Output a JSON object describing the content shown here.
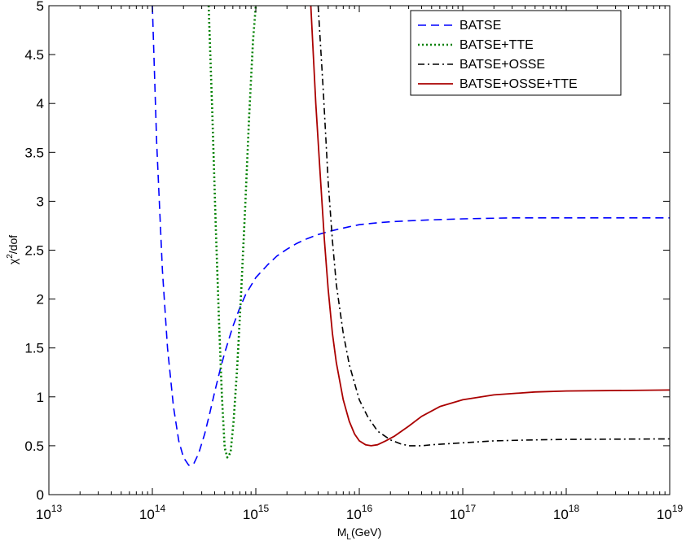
{
  "chart_data": {
    "type": "line",
    "xlabel_main": "M",
    "xlabel_sub": "L",
    "xlabel_unit": "(GeV)",
    "ylabel_main": "χ",
    "ylabel_sup": "2",
    "ylabel_rest": "/dof",
    "x_scale": "log",
    "xlim": [
      10000000000000.0,
      1e+19
    ],
    "ylim": [
      0,
      5
    ],
    "grid": false,
    "legend_position": "top-right",
    "x_ticks": [
      {
        "exp": 13,
        "base": "10",
        "power": "13"
      },
      {
        "exp": 14,
        "base": "10",
        "power": "14"
      },
      {
        "exp": 15,
        "base": "10",
        "power": "15"
      },
      {
        "exp": 16,
        "base": "10",
        "power": "16"
      },
      {
        "exp": 17,
        "base": "10",
        "power": "17"
      },
      {
        "exp": 18,
        "base": "10",
        "power": "18"
      },
      {
        "exp": 19,
        "base": "10",
        "power": "19"
      }
    ],
    "y_ticks": [
      {
        "value": 0,
        "label": "0"
      },
      {
        "value": 0.5,
        "label": "0.5"
      },
      {
        "value": 1,
        "label": "1"
      },
      {
        "value": 1.5,
        "label": "1.5"
      },
      {
        "value": 2,
        "label": "2"
      },
      {
        "value": 2.5,
        "label": "2.5"
      },
      {
        "value": 3,
        "label": "3"
      },
      {
        "value": 3.5,
        "label": "3.5"
      },
      {
        "value": 4,
        "label": "4"
      },
      {
        "value": 4.5,
        "label": "4.5"
      },
      {
        "value": 5,
        "label": "5"
      }
    ],
    "series": [
      {
        "name": "BATSE",
        "color": "#0000ff",
        "style": "dashed",
        "x": [
          100000000000000.0,
          110000000000000.0,
          125000000000000.0,
          140000000000000.0,
          160000000000000.0,
          180000000000000.0,
          200000000000000.0,
          225000000000000.0,
          250000000000000.0,
          280000000000000.0,
          320000000000000.0,
          360000000000000.0,
          400000000000000.0,
          450000000000000.0,
          500000000000000.0,
          600000000000000.0,
          700000000000000.0,
          800000000000000.0,
          1000000000000000.0,
          1300000000000000.0,
          1600000000000000.0,
          2000000000000000.0,
          2500000000000000.0,
          3000000000000000.0,
          4000000000000000.0,
          5000000000000000.0,
          6000000000000000.0,
          8000000000000000.0,
          1e+16,
          1.5e+16,
          2e+16,
          3e+16,
          5e+16,
          1e+17,
          3e+17,
          1e+18,
          1e+19
        ],
        "y": [
          5,
          3.6,
          2.3,
          1.5,
          0.9,
          0.55,
          0.38,
          0.3,
          0.31,
          0.42,
          0.62,
          0.84,
          1.05,
          1.27,
          1.45,
          1.72,
          1.91,
          2.05,
          2.22,
          2.35,
          2.44,
          2.51,
          2.57,
          2.61,
          2.66,
          2.69,
          2.71,
          2.74,
          2.76,
          2.78,
          2.79,
          2.8,
          2.81,
          2.82,
          2.83,
          2.83,
          2.83
        ]
      },
      {
        "name": "BATSE+TTE",
        "color": "#008000",
        "style": "dotted",
        "x": [
          350000000000000.0,
          380000000000000.0,
          410000000000000.0,
          440000000000000.0,
          470000000000000.0,
          500000000000000.0,
          530000000000000.0,
          570000000000000.0,
          610000000000000.0,
          660000000000000.0,
          720000000000000.0,
          790000000000000.0,
          860000000000000.0,
          940000000000000.0,
          1000000000000000.0
        ],
        "y": [
          5,
          3.9,
          2.75,
          1.8,
          1.0,
          0.48,
          0.38,
          0.43,
          0.75,
          1.3,
          2.05,
          2.95,
          3.85,
          4.65,
          5
        ]
      },
      {
        "name": "BATSE+OSSE",
        "color": "#000000",
        "style": "dashdot",
        "x": [
          4000000000000000.0,
          4500000000000000.0,
          5000000000000000.0,
          5500000000000000.0,
          6000000000000000.0,
          7000000000000000.0,
          8000000000000000.0,
          1e+16,
          1.2e+16,
          1.5e+16,
          2e+16,
          2.5e+16,
          3e+16,
          4e+16,
          5e+16,
          7e+16,
          1e+17,
          2e+17,
          5e+17,
          1e+18,
          1e+19
        ],
        "y": [
          5,
          4.1,
          3.2,
          2.6,
          2.15,
          1.65,
          1.33,
          0.97,
          0.8,
          0.65,
          0.56,
          0.52,
          0.5,
          0.5,
          0.51,
          0.52,
          0.53,
          0.55,
          0.56,
          0.565,
          0.57
        ]
      },
      {
        "name": "BATSE+OSSE+TTE",
        "color": "#aa0000",
        "style": "solid",
        "x": [
          3400000000000000.0,
          3800000000000000.0,
          4200000000000000.0,
          4600000000000000.0,
          5000000000000000.0,
          5500000000000000.0,
          6000000000000000.0,
          7000000000000000.0,
          8000000000000000.0,
          9000000000000000.0,
          1e+16,
          1.15e+16,
          1.3e+16,
          1.5e+16,
          1.8e+16,
          2.2e+16,
          3e+16,
          4e+16,
          6e+16,
          1e+17,
          2e+17,
          5e+17,
          1e+18,
          1e+19
        ],
        "y": [
          5,
          4.0,
          3.25,
          2.6,
          2.1,
          1.65,
          1.35,
          0.97,
          0.75,
          0.62,
          0.55,
          0.51,
          0.5,
          0.51,
          0.55,
          0.6,
          0.7,
          0.8,
          0.9,
          0.97,
          1.02,
          1.05,
          1.06,
          1.07
        ]
      }
    ]
  }
}
